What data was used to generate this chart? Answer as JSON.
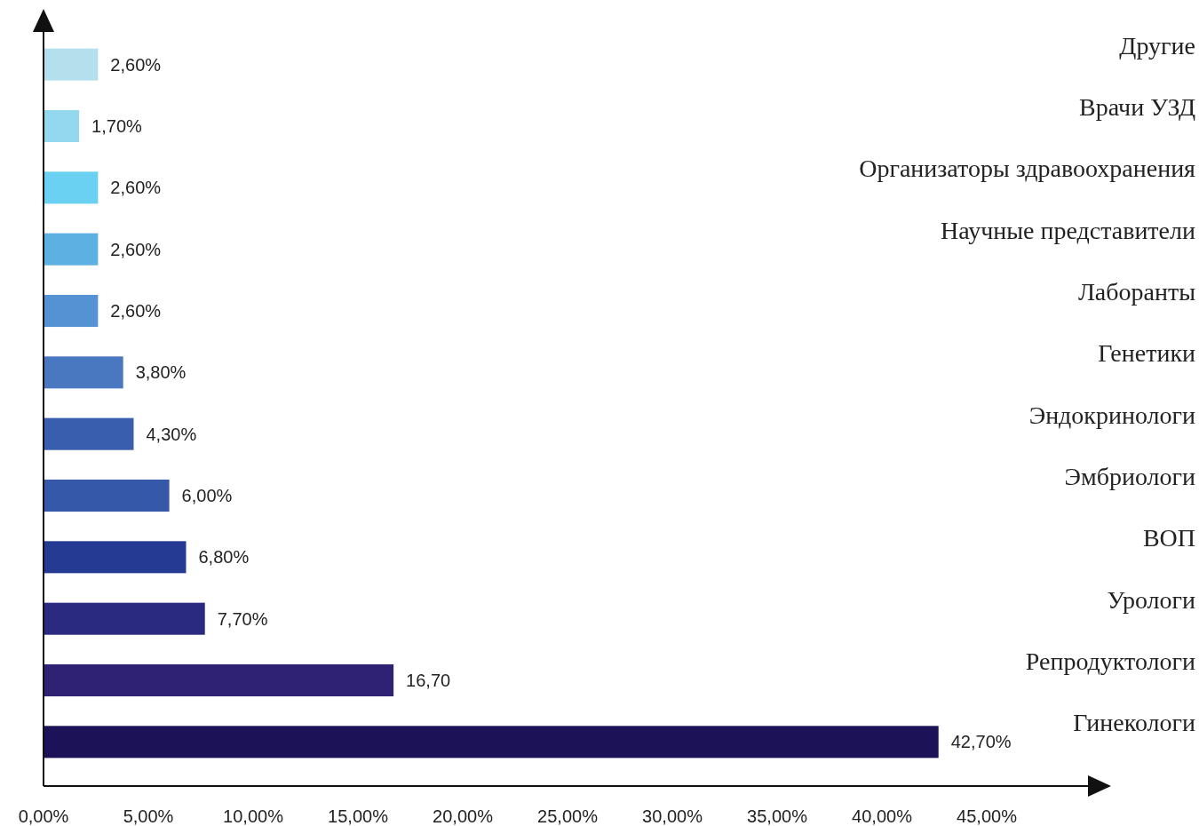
{
  "chart_data": {
    "type": "bar",
    "orientation": "horizontal",
    "categories": [
      "Другие",
      "Врачи УЗД",
      "Организаторы здравоохранения",
      "Научные представители",
      "Лаборанты",
      "Генетики",
      "Эндокринологи",
      "Эмбриологи",
      "ВОП",
      "Урологи",
      "Репродуктологи",
      "Гинекологи"
    ],
    "values": [
      2.6,
      1.7,
      2.6,
      2.6,
      2.6,
      3.8,
      4.3,
      6.0,
      6.8,
      7.7,
      16.7,
      42.7
    ],
    "value_labels": [
      "2,60%",
      "1,70%",
      "2,60%",
      "2,60%",
      "2,60%",
      "3,80%",
      "4,30%",
      "6,00%",
      "6,80%",
      "7,70%",
      "16,70",
      "42,70%"
    ],
    "colors": [
      "#b4e0ed",
      "#93d8ee",
      "#6ad1f3",
      "#5cb0e2",
      "#5592d4",
      "#4a78c0",
      "#3a5eae",
      "#3558a8",
      "#253a93",
      "#2a2a80",
      "#2f2275",
      "#1c1258"
    ],
    "xlim": [
      0,
      50
    ],
    "xticks": [
      {
        "value": 0,
        "label": "0,00%"
      },
      {
        "value": 5,
        "label": "5,00%"
      },
      {
        "value": 10,
        "label": "10,00%"
      },
      {
        "value": 15,
        "label": "15,00%"
      },
      {
        "value": 20,
        "label": "20,00%"
      },
      {
        "value": 25,
        "label": "25,00%"
      },
      {
        "value": 30,
        "label": "30,00%"
      },
      {
        "value": 35,
        "label": "35,00%"
      },
      {
        "value": 40,
        "label": "40,00%"
      },
      {
        "value": 45,
        "label": "45,00%"
      }
    ]
  }
}
